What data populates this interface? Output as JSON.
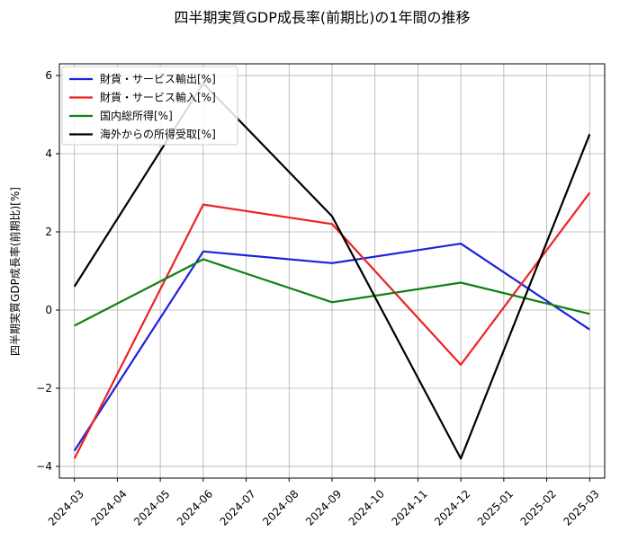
{
  "chart_data": {
    "type": "line",
    "title": "四半期実質GDP成長率(前期比)の1年間の推移",
    "xlabel": "",
    "ylabel": "四半期実質GDP成長率(前期比)[%]",
    "x_ticks": [
      "2024-03",
      "2024-04",
      "2024-05",
      "2024-06",
      "2024-07",
      "2024-08",
      "2024-09",
      "2024-10",
      "2024-11",
      "2024-12",
      "2025-01",
      "2025-02",
      "2025-03"
    ],
    "y_ticks": [
      6,
      4,
      2,
      0,
      -2,
      -4
    ],
    "y_tick_labels": [
      "6",
      "4",
      "2",
      "0",
      "−2",
      "−4"
    ],
    "xlim": [
      -0.35,
      12.35
    ],
    "ylim": [
      -4.3,
      6.3
    ],
    "grid": true,
    "legend_position": "top-left",
    "series": [
      {
        "name": "財貨・サービス輸出[%]",
        "color": "#1f1fe0",
        "x": [
          0,
          3,
          6,
          9,
          12
        ],
        "values": [
          -3.6,
          1.5,
          1.2,
          1.7,
          -0.5
        ]
      },
      {
        "name": "財貨・サービス輸入[%]",
        "color": "#ee2222",
        "x": [
          0,
          3,
          6,
          9,
          12
        ],
        "values": [
          -3.8,
          2.7,
          2.2,
          -1.4,
          3.0
        ]
      },
      {
        "name": "国内総所得[%]",
        "color": "#118011",
        "x": [
          0,
          3,
          6,
          9,
          12
        ],
        "values": [
          -0.4,
          1.3,
          0.2,
          0.7,
          -0.1
        ]
      },
      {
        "name": "海外からの所得受取[%]",
        "color": "#000000",
        "x": [
          0,
          3,
          6,
          9,
          12
        ],
        "values": [
          0.6,
          5.8,
          2.4,
          -3.8,
          4.5
        ]
      }
    ]
  }
}
